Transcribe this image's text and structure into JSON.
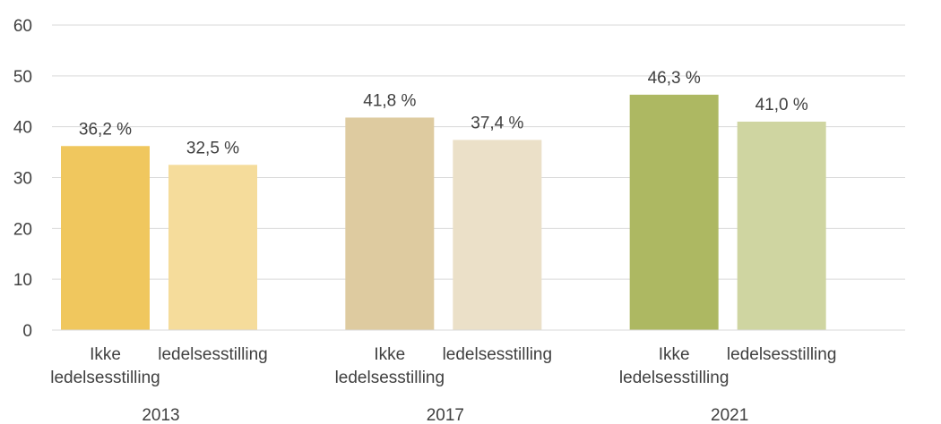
{
  "chart_data": {
    "type": "bar",
    "title": "",
    "xlabel": "",
    "ylabel": "",
    "ylim": [
      0,
      60
    ],
    "yticks": [
      "0",
      "10",
      "20",
      "30",
      "40",
      "50",
      "60"
    ],
    "grid": true,
    "groups": [
      {
        "label": "2013",
        "bars": [
          {
            "category": [
              "Ikke",
              "ledelsesstilling"
            ],
            "value": 36.2,
            "data_label": "36,2 %",
            "color": "#F0C75E"
          },
          {
            "category": [
              "ledelsesstilling"
            ],
            "value": 32.5,
            "data_label": "32,5 %",
            "color": "#F5DC9B"
          }
        ]
      },
      {
        "label": "2017",
        "bars": [
          {
            "category": [
              "Ikke",
              "ledelsesstilling"
            ],
            "value": 41.8,
            "data_label": "41,8 %",
            "color": "#DECBA0"
          },
          {
            "category": [
              "ledelsesstilling"
            ],
            "value": 37.4,
            "data_label": "37,4 %",
            "color": "#EBE0C8"
          }
        ]
      },
      {
        "label": "2021",
        "bars": [
          {
            "category": [
              "Ikke",
              "ledelsesstilling"
            ],
            "value": 46.3,
            "data_label": "46,3 %",
            "color": "#ADB862"
          },
          {
            "category": [
              "ledelsesstilling"
            ],
            "value": 41.0,
            "data_label": "41,0 %",
            "color": "#CFD5A1"
          }
        ]
      }
    ]
  }
}
